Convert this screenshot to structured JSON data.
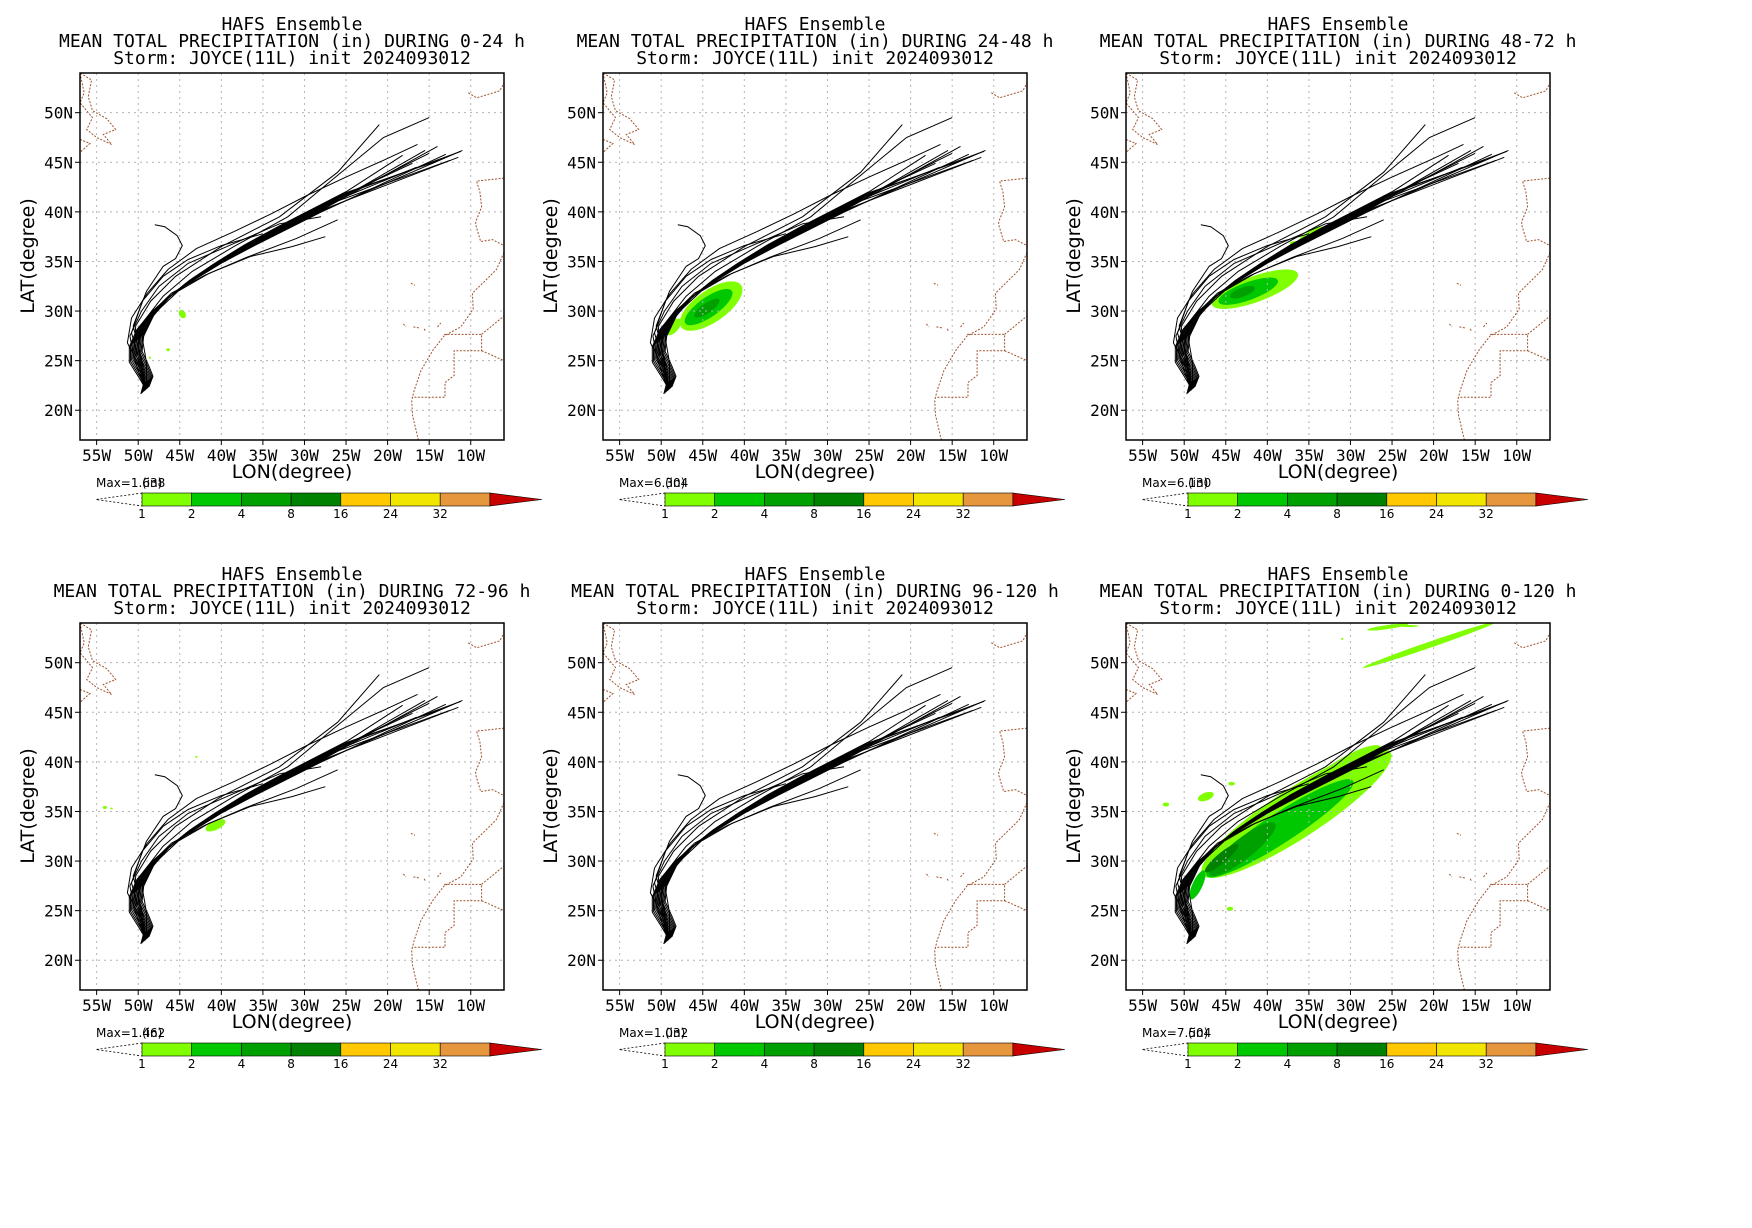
{
  "figure": {
    "panels": [
      {
        "title1": "HAFS Ensemble",
        "title2": "MEAN TOTAL PRECIPITATION (in) DURING  0-24 h",
        "title3": "Storm: JOYCE(11L) init 2024093012",
        "max_text": "Max=1.638",
        "precip": "p1"
      },
      {
        "title1": "HAFS Ensemble",
        "title2": "MEAN TOTAL PRECIPITATION (in) DURING 24-48 h",
        "title3": "Storm: JOYCE(11L) init 2024093012",
        "max_text": "Max=6.304",
        "precip": "p2"
      },
      {
        "title1": "HAFS Ensemble",
        "title2": "MEAN TOTAL PRECIPITATION (in) DURING 48-72 h",
        "title3": "Storm: JOYCE(11L) init 2024093012",
        "max_text": "Max=6.130",
        "precip": "p3"
      },
      {
        "title1": "HAFS Ensemble",
        "title2": "MEAN TOTAL PRECIPITATION (in) DURING 72-96 h",
        "title3": "Storm: JOYCE(11L) init 2024093012",
        "max_text": "Max=1.462",
        "precip": "p4"
      },
      {
        "title1": "HAFS Ensemble",
        "title2": "MEAN TOTAL PRECIPITATION (in) DURING 96-120 h",
        "title3": "Storm: JOYCE(11L) init 2024093012",
        "max_text": "Max=1.032",
        "precip": "p5"
      },
      {
        "title1": "HAFS Ensemble",
        "title2": "MEAN TOTAL PRECIPITATION (in) DURING 0-120 h",
        "title3": "Storm: JOYCE(11L) init 2024093012",
        "max_text": "Max=7.504",
        "precip": "p6"
      }
    ]
  },
  "map": {
    "lon_range": [
      -57,
      -6
    ],
    "lat_range": [
      17,
      54
    ],
    "lon_ticks": [
      -55,
      -50,
      -45,
      -40,
      -35,
      -30,
      -25,
      -20,
      -15,
      -10
    ],
    "lon_labels": [
      "55W",
      "50W",
      "45W",
      "40W",
      "35W",
      "30W",
      "25W",
      "20W",
      "15W",
      "10W"
    ],
    "lat_ticks": [
      20,
      25,
      30,
      35,
      40,
      45,
      50
    ],
    "lat_labels": [
      "20N",
      "25N",
      "30N",
      "35N",
      "40N",
      "45N",
      "50N"
    ],
    "xlabel": "LON(degree)",
    "ylabel": "LAT(degree)",
    "grid": true
  },
  "colorbar": {
    "unit": "(in)",
    "labels": [
      "1",
      "2",
      "4",
      "8",
      "16",
      "24",
      "32"
    ],
    "colors": [
      "#80ff00",
      "#00c800",
      "#00a000",
      "#008200",
      "#ffc800",
      "#f0e600",
      "#e6963c",
      "#c80000"
    ]
  },
  "track_style": {
    "track_color": "#000000",
    "coast_color": "#a0522d",
    "grid_color": "#b4b4b4"
  }
}
